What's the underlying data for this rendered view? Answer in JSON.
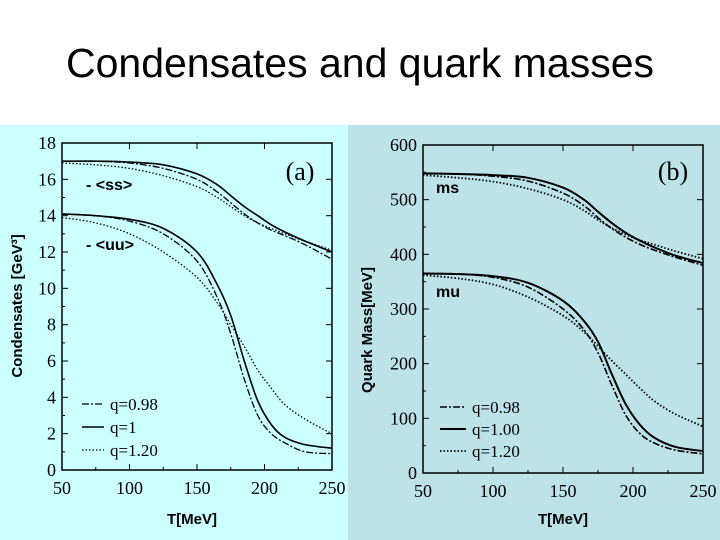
{
  "slide": {
    "title": "Condensates and quark masses"
  },
  "chart_data": [
    {
      "type": "line",
      "panel_label": "(a)",
      "xlabel": "T[MeV]",
      "ylabel": "Condensates [GeV³]",
      "xlim": [
        50,
        250
      ],
      "ylim": [
        0,
        18
      ],
      "xticks": [
        50,
        100,
        150,
        200,
        250
      ],
      "yticks": [
        0,
        2,
        4,
        6,
        8,
        10,
        12,
        14,
        16,
        18
      ],
      "groups": [
        {
          "label": "- <ss>"
        },
        {
          "label": "- <uu>"
        }
      ],
      "legend": {
        "position": "bottom-left",
        "entries": [
          "q=0.98",
          "q=1",
          "q=1.20"
        ]
      },
      "x": [
        50,
        75,
        100,
        125,
        150,
        165,
        175,
        185,
        195,
        205,
        215,
        230,
        250
      ],
      "series": [
        {
          "group": 0,
          "entry": 0,
          "values": [
            17.0,
            17.0,
            16.9,
            16.6,
            16.0,
            15.3,
            14.7,
            14.1,
            13.6,
            13.2,
            12.9,
            12.4,
            11.6
          ]
        },
        {
          "group": 0,
          "entry": 1,
          "values": [
            17.0,
            17.0,
            16.95,
            16.8,
            16.3,
            15.7,
            15.1,
            14.5,
            14.0,
            13.5,
            13.1,
            12.6,
            12.0
          ]
        },
        {
          "group": 0,
          "entry": 2,
          "values": [
            16.9,
            16.8,
            16.6,
            16.2,
            15.6,
            15.0,
            14.5,
            14.0,
            13.6,
            13.3,
            13.0,
            12.6,
            12.1
          ]
        },
        {
          "group": 1,
          "entry": 0,
          "values": [
            14.1,
            14.0,
            13.7,
            13.0,
            11.5,
            9.5,
            7.5,
            5.0,
            3.0,
            2.0,
            1.5,
            1.0,
            0.9
          ]
        },
        {
          "group": 1,
          "entry": 1,
          "values": [
            14.1,
            14.0,
            13.8,
            13.3,
            12.0,
            10.2,
            8.5,
            6.0,
            3.8,
            2.5,
            1.8,
            1.4,
            1.2
          ]
        },
        {
          "group": 1,
          "entry": 2,
          "values": [
            13.9,
            13.6,
            13.0,
            12.0,
            10.6,
            9.2,
            8.0,
            6.8,
            5.5,
            4.5,
            3.6,
            2.8,
            2.0
          ]
        }
      ]
    },
    {
      "type": "line",
      "panel_label": "(b)",
      "xlabel": "T[MeV]",
      "ylabel": "Quark Mass[MeV]",
      "xlim": [
        50,
        250
      ],
      "ylim": [
        0,
        600
      ],
      "xticks": [
        50,
        100,
        150,
        200,
        250
      ],
      "yticks": [
        0,
        100,
        200,
        300,
        400,
        500,
        600
      ],
      "groups": [
        {
          "label": "ms"
        },
        {
          "label": "mu"
        }
      ],
      "legend": {
        "position": "bottom-left",
        "entries": [
          "q=0.98",
          "q=1.00",
          "q=1.20"
        ]
      },
      "x": [
        50,
        75,
        100,
        125,
        150,
        165,
        175,
        185,
        195,
        205,
        215,
        230,
        250
      ],
      "series": [
        {
          "group": 0,
          "entry": 0,
          "values": [
            548,
            547,
            543,
            534,
            512,
            489,
            467,
            447,
            431,
            418,
            408,
            395,
            380
          ]
        },
        {
          "group": 0,
          "entry": 1,
          "values": [
            548,
            547,
            545,
            540,
            522,
            500,
            478,
            457,
            439,
            425,
            413,
            398,
            384
          ]
        },
        {
          "group": 0,
          "entry": 2,
          "values": [
            545,
            540,
            533,
            520,
            500,
            480,
            463,
            448,
            436,
            426,
            418,
            406,
            392
          ]
        },
        {
          "group": 1,
          "entry": 0,
          "values": [
            365,
            364,
            358,
            340,
            300,
            262,
            220,
            160,
            105,
            72,
            55,
            42,
            35
          ]
        },
        {
          "group": 1,
          "entry": 1,
          "values": [
            365,
            364,
            360,
            348,
            315,
            278,
            240,
            180,
            125,
            88,
            65,
            48,
            40
          ]
        },
        {
          "group": 1,
          "entry": 2,
          "values": [
            362,
            356,
            345,
            322,
            288,
            258,
            232,
            205,
            180,
            155,
            132,
            108,
            85
          ]
        }
      ]
    }
  ]
}
